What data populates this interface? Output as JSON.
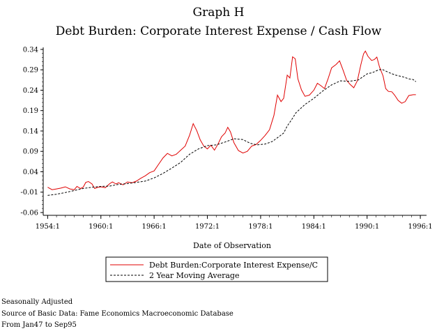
{
  "chart_data": {
    "type": "line",
    "title": "Graph H",
    "subtitle": "Debt Burden: Corporate Interest Expense / Cash Flow",
    "xlabel": "Date of Observation",
    "ylabel": "",
    "xlim": [
      1953.5,
      1996.7
    ],
    "ylim": [
      -0.06,
      0.345
    ],
    "x_ticks": [
      1954,
      1960,
      1966,
      1972,
      1978,
      1984,
      1990,
      1996
    ],
    "x_tick_labels": [
      "1954:1",
      "1960:1",
      "1966:1",
      "1972:1",
      "1978:1",
      "1984:1",
      "1990:1",
      "1996:1"
    ],
    "y_ticks": [
      -0.06,
      -0.01,
      0.04,
      0.09,
      0.14,
      0.19,
      0.24,
      0.29,
      0.34
    ],
    "y_tick_labels": [
      "-0.06",
      "-0.01",
      "0.04",
      "0.09",
      "0.14",
      "0.19",
      "0.24",
      "0.29",
      "0.34"
    ],
    "legend_position": "bottom",
    "series": [
      {
        "name": "Debt Burden:Corporate Interest Expense/C",
        "color": "#e00000",
        "style": "solid",
        "points": [
          [
            1954.0,
            0.002
          ],
          [
            1954.5,
            -0.004
          ],
          [
            1955.0,
            -0.002
          ],
          [
            1955.5,
            0.0
          ],
          [
            1956.0,
            0.003
          ],
          [
            1956.5,
            -0.002
          ],
          [
            1957.0,
            -0.004
          ],
          [
            1957.3,
            0.004
          ],
          [
            1957.7,
            -0.001
          ],
          [
            1958.0,
            0.002
          ],
          [
            1958.3,
            0.014
          ],
          [
            1958.6,
            0.016
          ],
          [
            1959.0,
            0.01
          ],
          [
            1959.3,
            -0.001
          ],
          [
            1959.7,
            0.002
          ],
          [
            1960.0,
            0.003
          ],
          [
            1960.5,
            0.001
          ],
          [
            1961.0,
            0.011
          ],
          [
            1961.3,
            0.015
          ],
          [
            1961.7,
            0.01
          ],
          [
            1962.0,
            0.013
          ],
          [
            1962.5,
            0.008
          ],
          [
            1963.0,
            0.015
          ],
          [
            1963.5,
            0.013
          ],
          [
            1964.0,
            0.017
          ],
          [
            1964.5,
            0.024
          ],
          [
            1965.0,
            0.03
          ],
          [
            1965.5,
            0.038
          ],
          [
            1966.0,
            0.042
          ],
          [
            1966.5,
            0.058
          ],
          [
            1967.0,
            0.074
          ],
          [
            1967.5,
            0.085
          ],
          [
            1968.0,
            0.079
          ],
          [
            1968.5,
            0.083
          ],
          [
            1969.0,
            0.093
          ],
          [
            1969.5,
            0.103
          ],
          [
            1970.0,
            0.13
          ],
          [
            1970.4,
            0.158
          ],
          [
            1970.8,
            0.141
          ],
          [
            1971.2,
            0.118
          ],
          [
            1971.6,
            0.103
          ],
          [
            1972.0,
            0.096
          ],
          [
            1972.4,
            0.105
          ],
          [
            1972.8,
            0.093
          ],
          [
            1973.2,
            0.108
          ],
          [
            1973.6,
            0.126
          ],
          [
            1974.0,
            0.135
          ],
          [
            1974.3,
            0.149
          ],
          [
            1974.6,
            0.138
          ],
          [
            1975.0,
            0.111
          ],
          [
            1975.5,
            0.092
          ],
          [
            1976.0,
            0.086
          ],
          [
            1976.5,
            0.09
          ],
          [
            1977.0,
            0.103
          ],
          [
            1977.5,
            0.107
          ],
          [
            1978.0,
            0.117
          ],
          [
            1978.5,
            0.129
          ],
          [
            1979.0,
            0.143
          ],
          [
            1979.5,
            0.178
          ],
          [
            1979.9,
            0.228
          ],
          [
            1980.3,
            0.212
          ],
          [
            1980.6,
            0.22
          ],
          [
            1981.0,
            0.277
          ],
          [
            1981.3,
            0.27
          ],
          [
            1981.6,
            0.322
          ],
          [
            1981.9,
            0.317
          ],
          [
            1982.2,
            0.268
          ],
          [
            1982.6,
            0.241
          ],
          [
            1983.0,
            0.225
          ],
          [
            1983.5,
            0.228
          ],
          [
            1984.0,
            0.24
          ],
          [
            1984.4,
            0.257
          ],
          [
            1984.8,
            0.251
          ],
          [
            1985.2,
            0.244
          ],
          [
            1985.6,
            0.268
          ],
          [
            1986.0,
            0.295
          ],
          [
            1986.5,
            0.303
          ],
          [
            1986.9,
            0.312
          ],
          [
            1987.3,
            0.289
          ],
          [
            1987.7,
            0.264
          ],
          [
            1988.1,
            0.254
          ],
          [
            1988.5,
            0.246
          ],
          [
            1988.9,
            0.263
          ],
          [
            1989.3,
            0.303
          ],
          [
            1989.6,
            0.329
          ],
          [
            1989.8,
            0.336
          ],
          [
            1990.1,
            0.323
          ],
          [
            1990.5,
            0.313
          ],
          [
            1990.8,
            0.315
          ],
          [
            1991.1,
            0.321
          ],
          [
            1991.4,
            0.297
          ],
          [
            1991.8,
            0.275
          ],
          [
            1992.1,
            0.244
          ],
          [
            1992.4,
            0.237
          ],
          [
            1992.8,
            0.236
          ],
          [
            1993.1,
            0.228
          ],
          [
            1993.5,
            0.215
          ],
          [
            1993.9,
            0.208
          ],
          [
            1994.3,
            0.212
          ],
          [
            1994.7,
            0.227
          ],
          [
            1995.2,
            0.229
          ],
          [
            1995.5,
            0.229
          ]
        ]
      },
      {
        "name": "2 Year Moving Average",
        "color": "#000000",
        "style": "dashed",
        "points": [
          [
            1954.0,
            -0.018
          ],
          [
            1955.0,
            -0.015
          ],
          [
            1956.0,
            -0.011
          ],
          [
            1957.0,
            -0.006
          ],
          [
            1958.0,
            -0.001
          ],
          [
            1959.0,
            0.002
          ],
          [
            1960.0,
            0.004
          ],
          [
            1961.0,
            0.005
          ],
          [
            1962.0,
            0.009
          ],
          [
            1963.0,
            0.011
          ],
          [
            1964.0,
            0.014
          ],
          [
            1965.0,
            0.017
          ],
          [
            1966.0,
            0.025
          ],
          [
            1967.0,
            0.036
          ],
          [
            1968.0,
            0.049
          ],
          [
            1969.0,
            0.063
          ],
          [
            1970.0,
            0.083
          ],
          [
            1971.0,
            0.096
          ],
          [
            1972.0,
            0.104
          ],
          [
            1973.0,
            0.106
          ],
          [
            1974.0,
            0.113
          ],
          [
            1975.0,
            0.121
          ],
          [
            1976.0,
            0.119
          ],
          [
            1976.8,
            0.11
          ],
          [
            1977.6,
            0.106
          ],
          [
            1978.5,
            0.108
          ],
          [
            1979.3,
            0.114
          ],
          [
            1980.0,
            0.125
          ],
          [
            1980.6,
            0.135
          ],
          [
            1981.0,
            0.152
          ],
          [
            1981.5,
            0.168
          ],
          [
            1982.0,
            0.185
          ],
          [
            1982.5,
            0.195
          ],
          [
            1983.0,
            0.205
          ],
          [
            1984.0,
            0.22
          ],
          [
            1985.0,
            0.238
          ],
          [
            1986.0,
            0.253
          ],
          [
            1987.0,
            0.263
          ],
          [
            1988.0,
            0.262
          ],
          [
            1989.0,
            0.265
          ],
          [
            1990.0,
            0.28
          ],
          [
            1990.6,
            0.283
          ],
          [
            1991.3,
            0.29
          ],
          [
            1991.7,
            0.291
          ],
          [
            1992.5,
            0.283
          ],
          [
            1993.2,
            0.277
          ],
          [
            1994.0,
            0.273
          ],
          [
            1994.7,
            0.268
          ],
          [
            1995.2,
            0.266
          ],
          [
            1995.5,
            0.261
          ]
        ]
      }
    ],
    "notes": [
      "Seasonally Adjusted",
      "Source of Basic Data: Fame Economics Macroeconomic Database",
      "From Jan47 to Sep95"
    ]
  }
}
